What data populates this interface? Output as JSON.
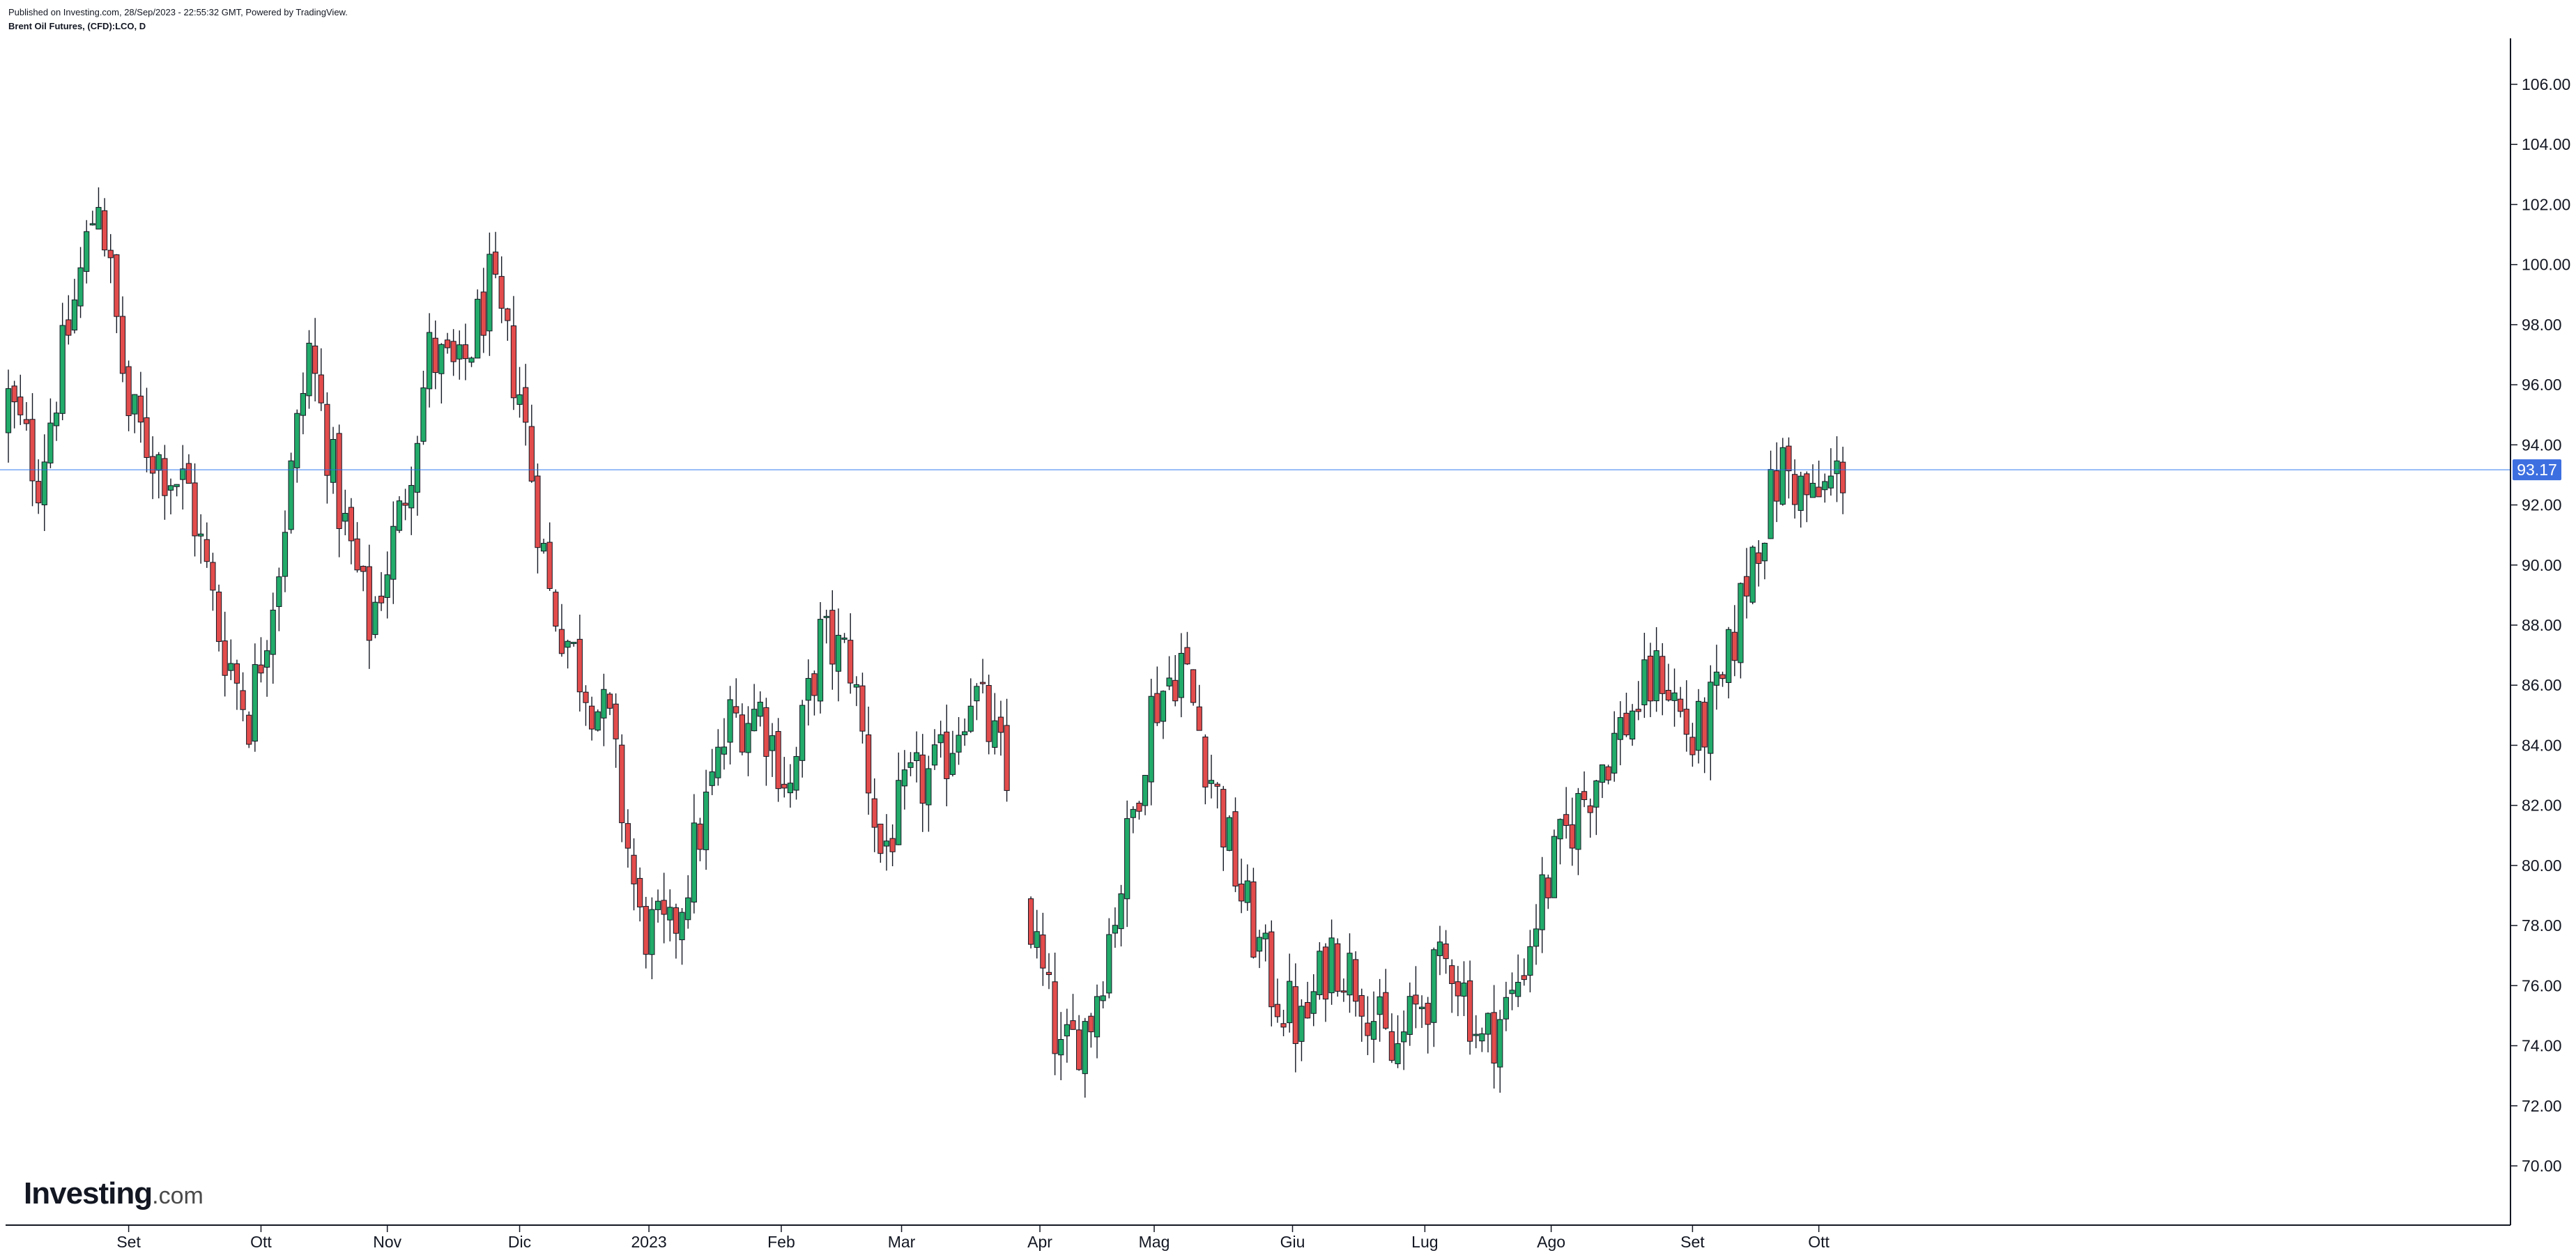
{
  "header": {
    "published": "Published on Investing.com, 28/Sep/2023 - 22:55:32 GMT, Powered by TradingView.",
    "symbol": "Brent Oil Futures, (CFD):LCO, D"
  },
  "logo": {
    "name": "Investing",
    "suffix": ".com"
  },
  "colors": {
    "up": "#22ab6a",
    "down": "#e34c4c",
    "price_line": "#1e6cf0",
    "price_badge": "#3d6fe0",
    "axis": "#131722"
  },
  "chart_data": {
    "type": "candlestick",
    "title": "Brent Oil Futures, (CFD):LCO, D",
    "ylim": [
      69,
      107
    ],
    "y_ticks": [
      "70.00",
      "72.00",
      "74.00",
      "76.00",
      "78.00",
      "80.00",
      "82.00",
      "84.00",
      "86.00",
      "88.00",
      "90.00",
      "92.00",
      "94.00",
      "96.00",
      "98.00",
      "100.00",
      "102.00",
      "104.00",
      "106.00"
    ],
    "last_price": "93.17",
    "x_ticks": [
      {
        "label": "Set",
        "week": 4
      },
      {
        "label": "Ott",
        "week": 8.4
      },
      {
        "label": "Nov",
        "week": 12.6
      },
      {
        "label": "Dic",
        "week": 17
      },
      {
        "label": "2023",
        "week": 21.3
      },
      {
        "label": "Feb",
        "week": 25.7
      },
      {
        "label": "Mar",
        "week": 29.7
      },
      {
        "label": "Apr",
        "week": 34.3
      },
      {
        "label": "Mag",
        "week": 38.1
      },
      {
        "label": "Giu",
        "week": 42.7
      },
      {
        "label": "Lug",
        "week": 47.1
      },
      {
        "label": "Ago",
        "week": 51.3
      },
      {
        "label": "Set",
        "week": 56
      },
      {
        "label": "Ott",
        "week": 60.2
      }
    ],
    "weekly_closes": [
      95.5,
      93.0,
      97.8,
      102.5,
      95.0,
      93.5,
      92.5,
      87.8,
      85.0,
      90.2,
      97.2,
      92.0,
      88.0,
      91.5,
      97.0,
      96.2,
      99.2,
      95.8,
      89.0,
      86.5,
      84.5,
      78.0,
      77.5,
      81.2,
      84.8,
      85.2,
      82.5,
      87.5,
      86.8,
      80.4,
      82.5,
      83.2,
      86.0,
      83.5,
      78.0,
      73.5,
      75.0,
      79.5,
      85.2,
      86.9,
      83.0,
      79.0,
      76.0,
      74.5,
      77.2,
      76.0,
      73.5,
      75.5,
      77.0,
      74.0,
      75.5,
      79.0,
      81.5,
      83.5,
      85.2,
      86.5,
      84.0,
      85.8,
      90.5,
      93.3,
      92.0,
      93.17
    ]
  }
}
